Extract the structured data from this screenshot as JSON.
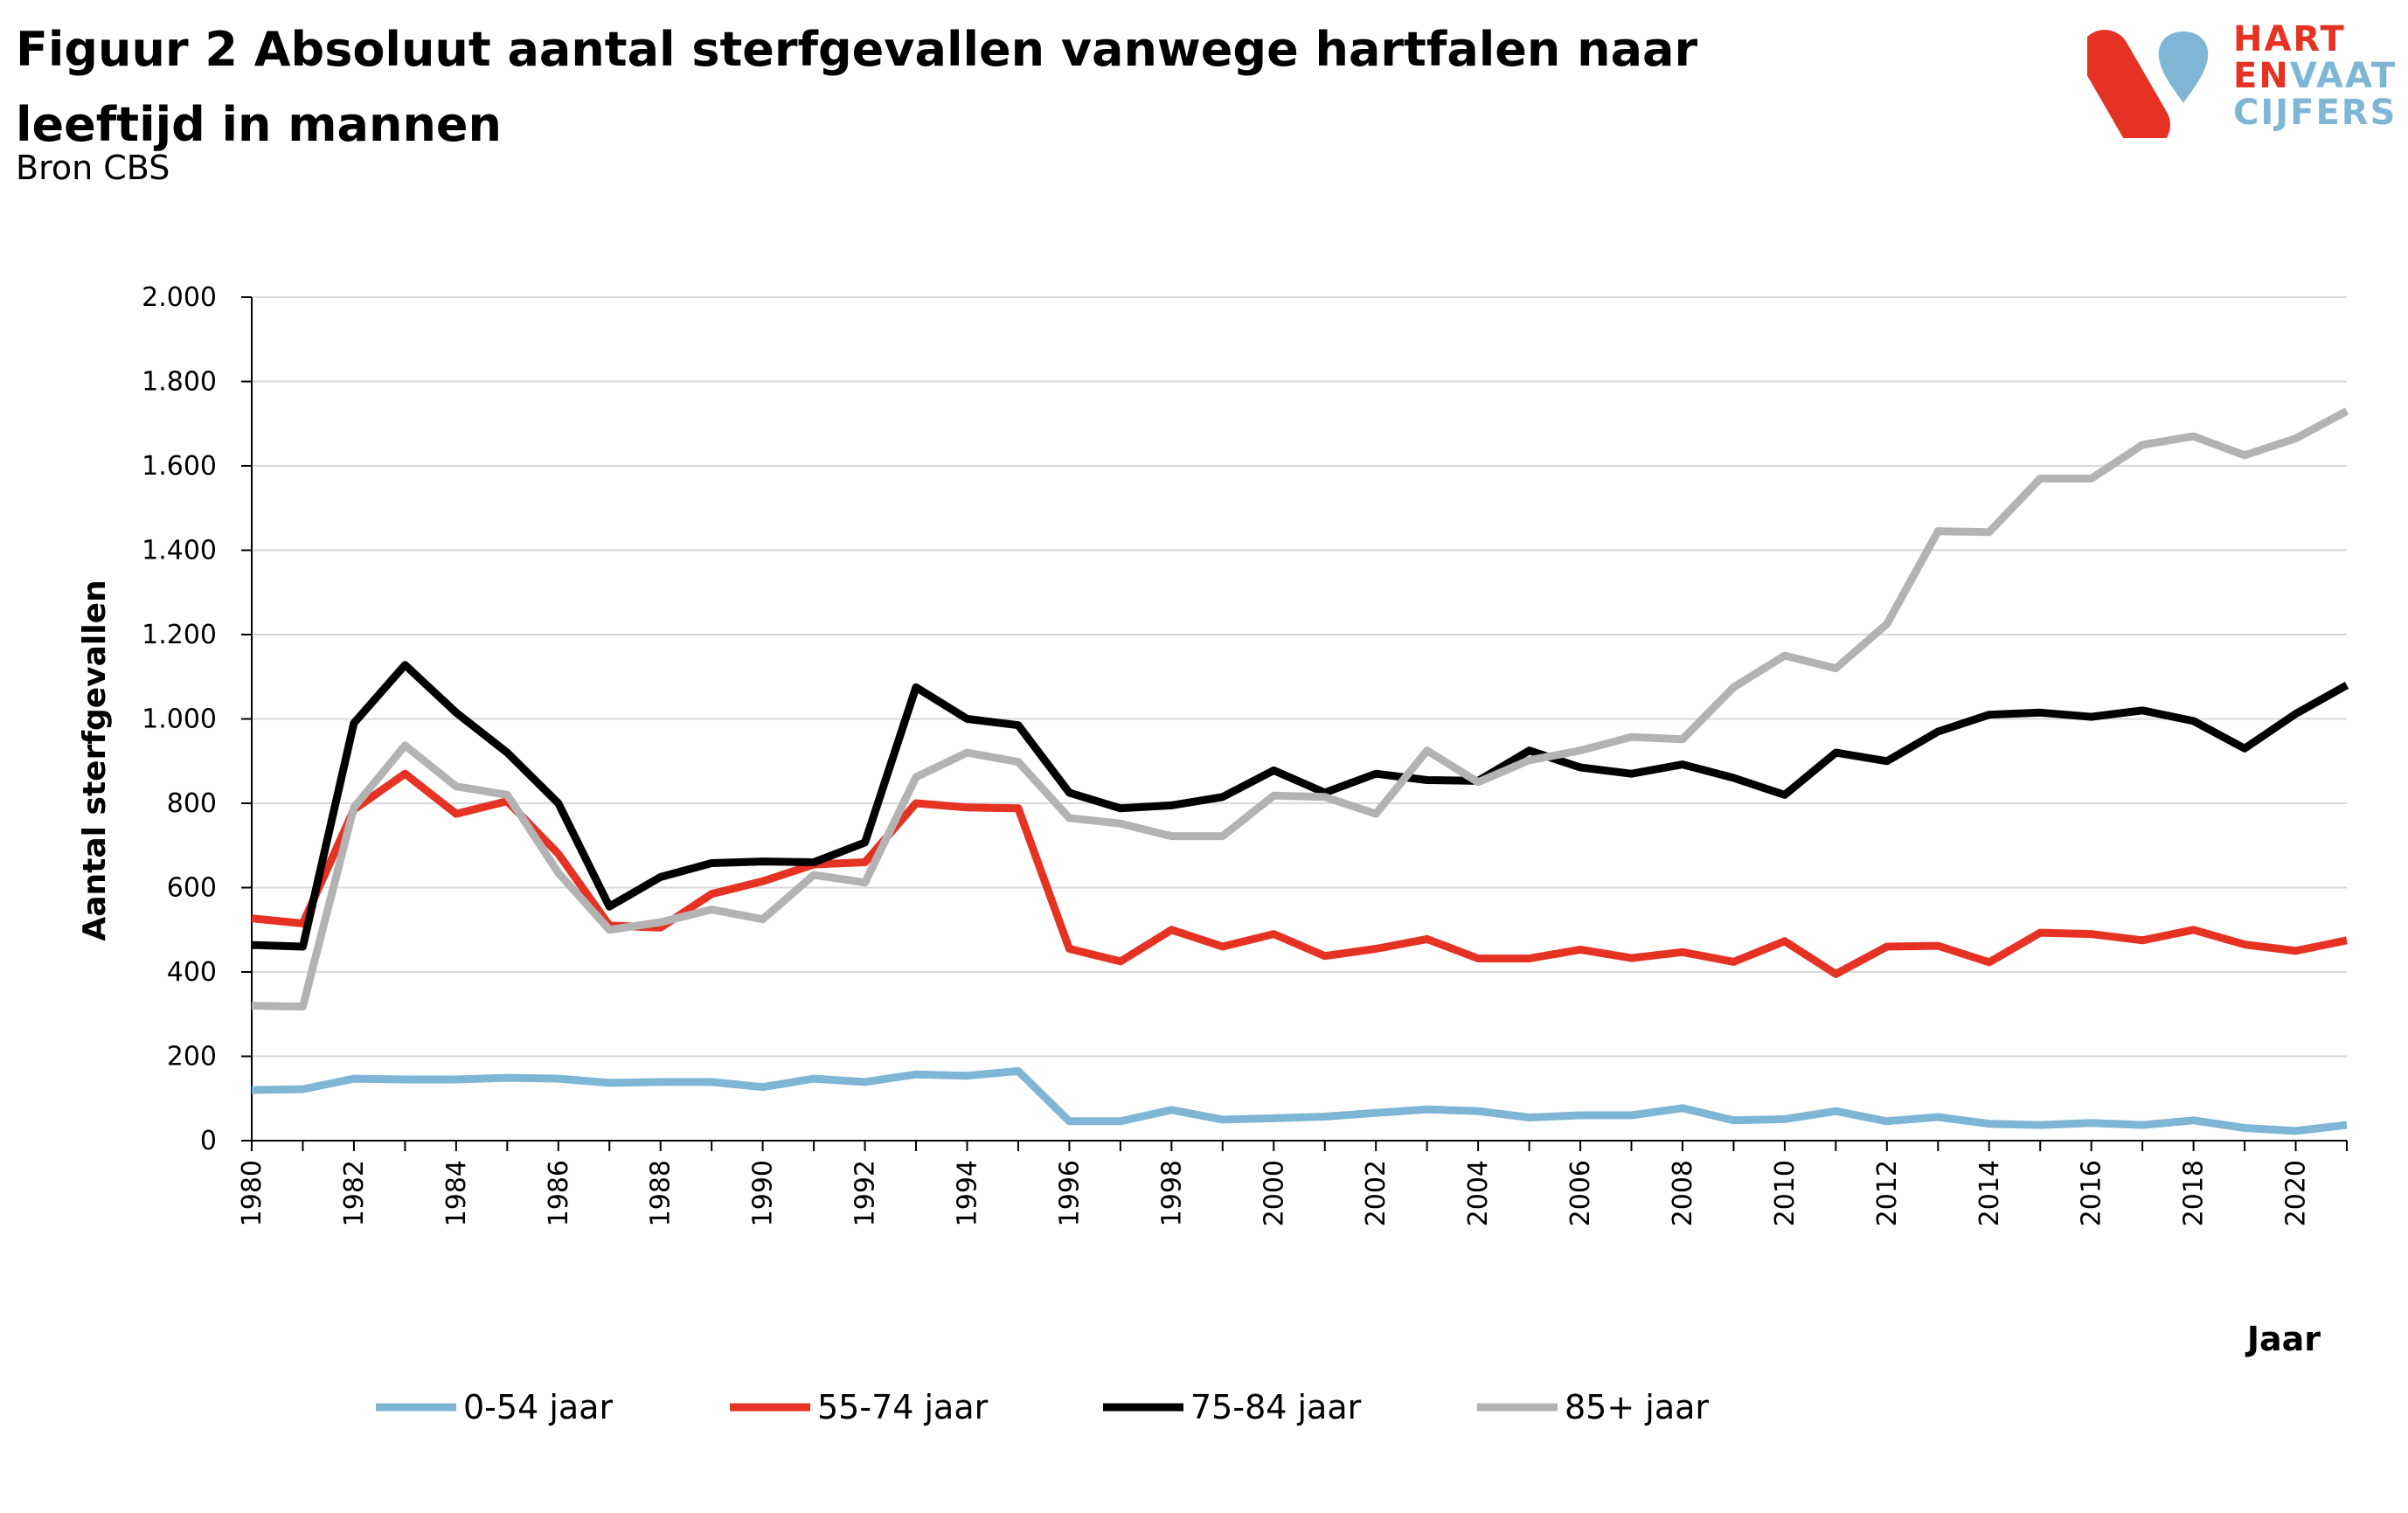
{
  "header": {
    "title": "Figuur 2 Absoluut aantal sterfgevallen vanwege hartfalen naar leeftijd in mannen",
    "subtitle": "Bron CBS"
  },
  "logo": {
    "line1": "HART",
    "line2a": "EN",
    "line2b": "VAAT",
    "line3": "CIJFERS",
    "colors": {
      "red": "#e63222",
      "blue": "#7fb6d5"
    }
  },
  "chart_data": {
    "type": "line",
    "title": "Figuur 2 Absoluut aantal sterfgevallen vanwege hartfalen naar leeftijd in mannen",
    "xlabel": "Jaar",
    "ylabel": "Aantal sterfgevallen",
    "ylim": [
      0,
      2000
    ],
    "yticks": [
      0,
      200,
      400,
      600,
      800,
      1000,
      1200,
      1400,
      1600,
      1800,
      2000
    ],
    "ytick_labels": [
      "0",
      "200",
      "400",
      "600",
      "800",
      "1.000",
      "1.200",
      "1.400",
      "1.600",
      "1.800",
      "2.000"
    ],
    "x": [
      1980,
      1981,
      1982,
      1983,
      1984,
      1985,
      1986,
      1987,
      1988,
      1989,
      1990,
      1991,
      1992,
      1993,
      1994,
      1995,
      1996,
      1997,
      1998,
      1999,
      2000,
      2001,
      2002,
      2003,
      2004,
      2005,
      2006,
      2007,
      2008,
      2009,
      2010,
      2011,
      2012,
      2013,
      2014,
      2015,
      2016,
      2017,
      2018,
      2019,
      2020,
      2021
    ],
    "xticks": [
      1980,
      1982,
      1984,
      1986,
      1988,
      1990,
      1992,
      1994,
      1996,
      1998,
      2000,
      2002,
      2004,
      2006,
      2008,
      2010,
      2012,
      2014,
      2016,
      2018,
      2020
    ],
    "grid": "horizontal",
    "legend_position": "bottom",
    "series": [
      {
        "name": "0-54 jaar",
        "color": "#7fb6d5",
        "values": [
          120,
          122,
          147,
          145,
          145,
          149,
          147,
          137,
          139,
          139,
          127,
          147,
          139,
          157,
          154,
          165,
          46,
          46,
          73,
          50,
          53,
          57,
          66,
          74,
          70,
          55,
          60,
          60,
          77,
          48,
          51,
          70,
          46,
          56,
          40,
          37,
          42,
          37,
          48,
          30,
          23,
          37
        ]
      },
      {
        "name": "55-74 jaar",
        "color": "#e63222",
        "values": [
          527,
          515,
          785,
          870,
          775,
          805,
          680,
          510,
          505,
          585,
          615,
          655,
          660,
          800,
          790,
          788,
          455,
          425,
          500,
          460,
          490,
          438,
          455,
          478,
          432,
          432,
          453,
          433,
          447,
          424,
          473,
          395,
          460,
          462,
          423,
          493,
          490,
          475,
          500,
          465,
          450,
          475
        ]
      },
      {
        "name": "75-84 jaar",
        "color": "#000000",
        "values": [
          464,
          460,
          990,
          1128,
          1015,
          920,
          800,
          555,
          625,
          658,
          662,
          660,
          707,
          1075,
          1000,
          985,
          825,
          788,
          795,
          815,
          878,
          825,
          870,
          855,
          853,
          925,
          885,
          870,
          892,
          860,
          820,
          920,
          900,
          970,
          1010,
          1015,
          1005,
          1020,
          995,
          930,
          1012,
          1080
        ]
      },
      {
        "name": "85+ jaar",
        "color": "#b3b3b3",
        "values": [
          320,
          318,
          790,
          937,
          840,
          820,
          635,
          500,
          518,
          548,
          525,
          630,
          612,
          862,
          920,
          898,
          765,
          752,
          722,
          722,
          818,
          815,
          775,
          925,
          850,
          902,
          925,
          957,
          952,
          1075,
          1150,
          1120,
          1225,
          1445,
          1443,
          1570,
          1570,
          1650,
          1670,
          1625,
          1665,
          1730
        ]
      }
    ]
  }
}
